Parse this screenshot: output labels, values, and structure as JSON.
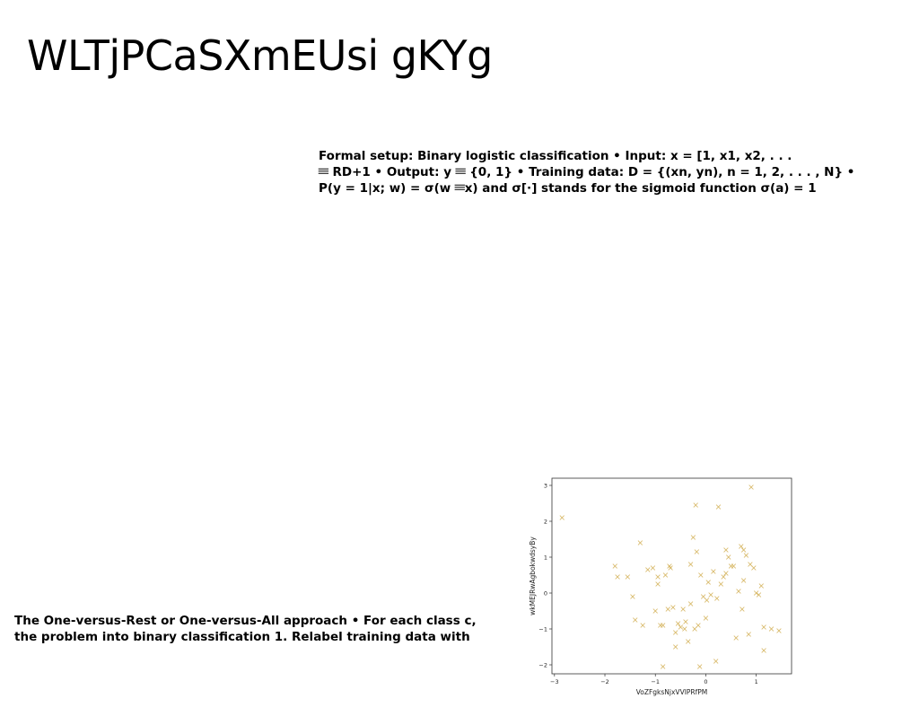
{
  "slide": {
    "title": "WLTjPCaSXmEUsi gKYg",
    "setup_lines": [
      "Formal setup: Binary logistic classification • Input: x = [1, x1, x2, . . .",
      "𝄘 RD+1 • Output: y 𝄘 {0, 1} • Training data: D = {(xn, yn), n = 1, 2, . . . , N} •",
      "P(y = 1|x; w) = σ(w 𝄘x) and σ[·] stands for the sigmoid function σ(a) = 1"
    ],
    "ovr_lines": [
      "The One-versus-Rest or One-versus-All approach • For each class c,",
      "the problem into binary classification 1. Relabel training data with"
    ]
  },
  "chart_data": {
    "type": "scatter",
    "xlabel": "VoZFgksNjxVVIPRfPM",
    "ylabel": "wkMEJRwAgbokwdsyBy",
    "xlim": [
      -3.05,
      1.7
    ],
    "ylim": [
      -2.25,
      3.2
    ],
    "xticks": [
      -3,
      -2,
      -1,
      0,
      1
    ],
    "yticks": [
      -2,
      -1,
      0,
      1,
      2,
      3
    ],
    "marker": "x",
    "color": "#d4b25a",
    "grid": false,
    "x": [
      -2.85,
      -1.8,
      -1.75,
      -1.55,
      -1.45,
      -1.4,
      -1.3,
      -1.25,
      -1.15,
      -1.05,
      -1.0,
      -0.95,
      -0.9,
      -0.85,
      -0.8,
      -0.75,
      -0.72,
      -0.7,
      -0.65,
      -0.6,
      -0.55,
      -0.5,
      -0.45,
      -0.42,
      -0.4,
      -0.35,
      -0.3,
      -0.25,
      -0.22,
      -0.2,
      -0.15,
      -0.12,
      -0.1,
      -0.05,
      0.0,
      0.05,
      0.1,
      0.15,
      0.2,
      0.25,
      0.3,
      0.35,
      0.4,
      0.45,
      0.5,
      0.55,
      0.6,
      0.65,
      0.7,
      0.72,
      0.75,
      0.8,
      0.85,
      0.9,
      0.95,
      1.0,
      1.05,
      1.1,
      1.15,
      1.3,
      1.45,
      -0.95,
      -0.18,
      0.22,
      0.88,
      -0.6,
      0.02,
      -0.3,
      0.75,
      1.15,
      -0.85,
      0.4
    ],
    "y": [
      2.1,
      0.75,
      0.45,
      0.45,
      -0.1,
      -0.75,
      1.4,
      -0.9,
      0.65,
      0.7,
      -0.5,
      0.25,
      -0.9,
      -2.05,
      0.5,
      -0.45,
      0.75,
      0.7,
      -0.4,
      -1.5,
      -0.85,
      -0.95,
      -0.45,
      -1.0,
      -0.8,
      -1.35,
      0.8,
      1.55,
      -1.0,
      2.45,
      -0.9,
      -2.05,
      0.5,
      -0.1,
      -0.7,
      0.3,
      -0.05,
      0.6,
      -1.9,
      2.4,
      0.25,
      0.45,
      1.2,
      1.0,
      0.75,
      0.75,
      -1.25,
      0.05,
      1.3,
      -0.45,
      1.2,
      1.05,
      -1.15,
      2.95,
      0.7,
      0.0,
      -0.05,
      0.2,
      -1.6,
      -1.0,
      -1.05,
      0.45,
      1.15,
      -0.15,
      0.8,
      -1.1,
      -0.2,
      -0.3,
      0.35,
      -0.95,
      -0.9,
      0.55
    ]
  }
}
